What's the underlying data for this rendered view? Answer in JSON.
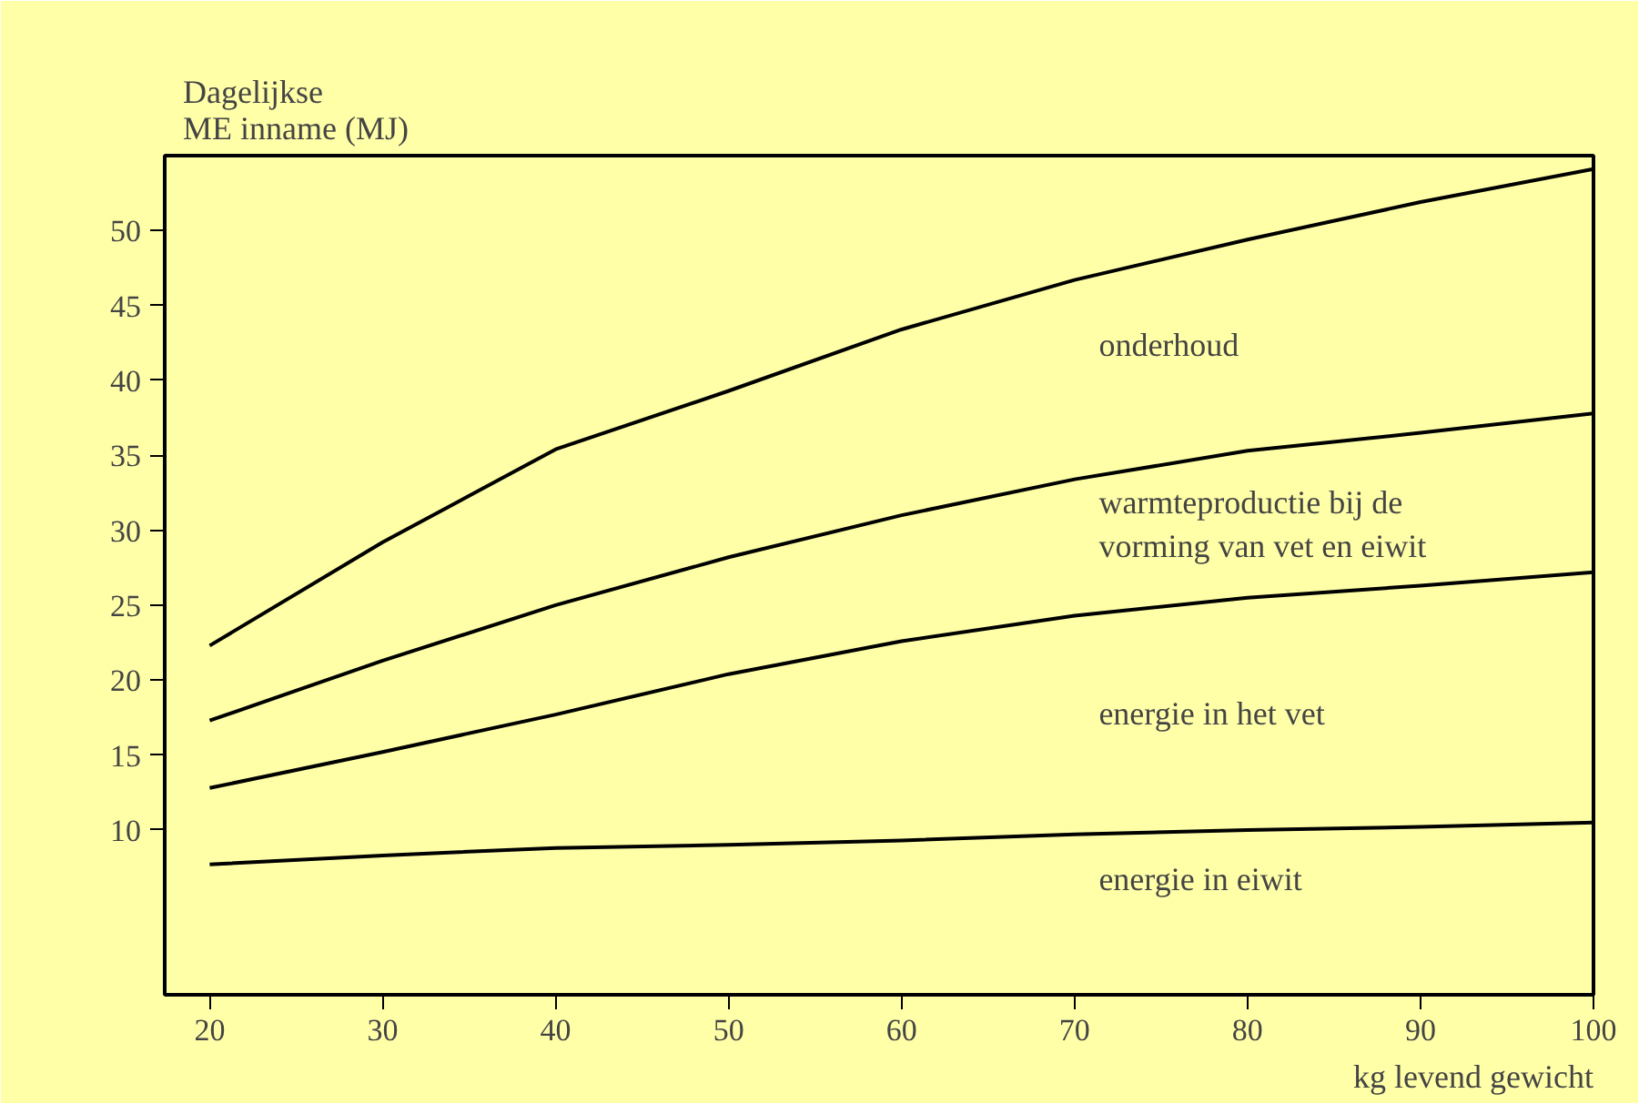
{
  "chart_data": {
    "type": "line",
    "ylabel": "Dagelijkse\nME inname (MJ)",
    "xlabel": "kg levend gewicht",
    "x": [
      20,
      30,
      40,
      50,
      60,
      70,
      80,
      90,
      100
    ],
    "series": [
      {
        "color": "#000000",
        "values": [
          22.3,
          29.2,
          35.4,
          39.3,
          43.4,
          46.7,
          49.4,
          51.9,
          54.1
        ]
      },
      {
        "color": "#000000",
        "values": [
          17.3,
          21.3,
          25.0,
          28.2,
          31.0,
          33.4,
          35.3,
          36.5,
          37.8
        ]
      },
      {
        "color": "#000000",
        "values": [
          12.8,
          15.2,
          17.7,
          20.4,
          22.6,
          24.3,
          25.5,
          26.3,
          27.2
        ]
      },
      {
        "color": "#000000",
        "values": [
          7.7,
          8.3,
          8.8,
          9.0,
          9.3,
          9.7,
          10.0,
          10.2,
          10.5
        ]
      }
    ],
    "annotations": [
      "onderhoud",
      "warmteproductie bij de\nvorming van vet en eiwit",
      "energie in het vet",
      "energie in eiwit"
    ],
    "xlim": [
      17.4,
      100
    ],
    "ylim": [
      -1,
      55
    ],
    "xticks": [
      20,
      30,
      40,
      50,
      60,
      70,
      80,
      90,
      100
    ],
    "yticks": [
      10,
      15,
      20,
      25,
      30,
      35,
      40,
      45,
      50
    ],
    "grid": false,
    "marker": "none",
    "line_style": "solid"
  }
}
